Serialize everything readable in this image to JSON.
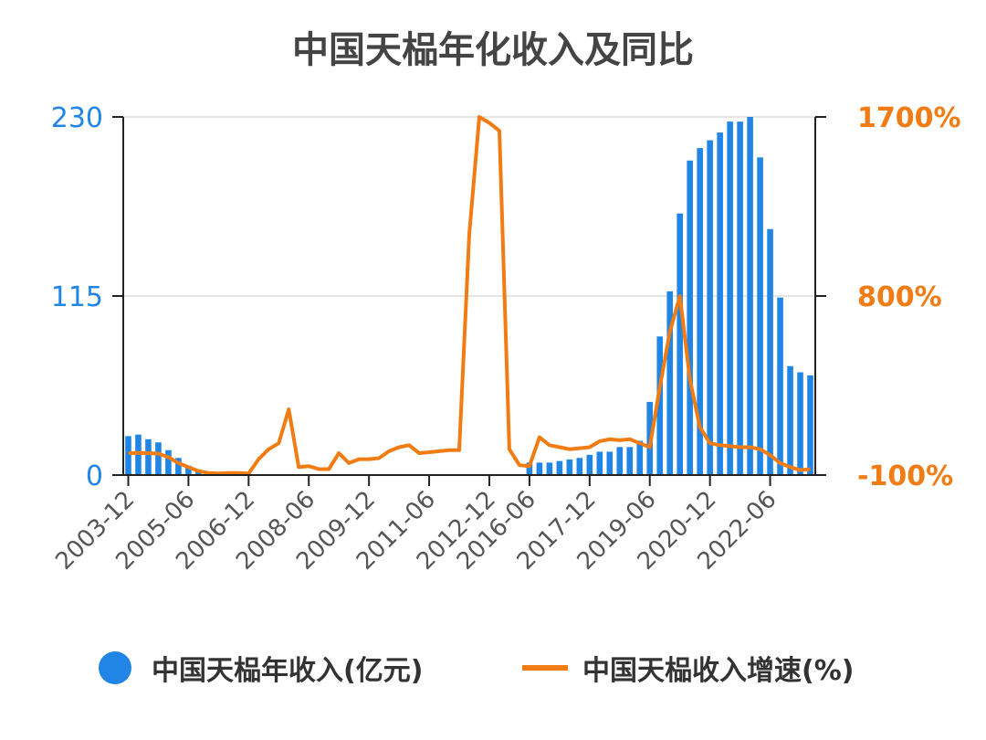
{
  "chart_data": {
    "type": "bar+line",
    "title": "中国天榀年化收入及同比",
    "categories": [
      "2003-12",
      "2004-03",
      "2004-06",
      "2004-09",
      "2004-12",
      "2005-03",
      "2005-06",
      "2005-09",
      "2005-12",
      "2006-03",
      "2006-06",
      "2006-09",
      "2006-12",
      "2007-03",
      "2007-06",
      "2007-09",
      "2007-12",
      "2008-03",
      "2008-06",
      "2008-09",
      "2008-12",
      "2009-03",
      "2009-06",
      "2009-09",
      "2009-12",
      "2010-03",
      "2010-06",
      "2010-09",
      "2010-12",
      "2011-03",
      "2011-06",
      "2011-09",
      "2011-12",
      "2012-03",
      "2012-06",
      "2012-09",
      "2012-12",
      "2013-03",
      "2013-06",
      "2013-09",
      "2016-06",
      "2016-09",
      "2016-12",
      "2017-03",
      "2017-06",
      "2017-09",
      "2017-12",
      "2018-03",
      "2018-06",
      "2018-09",
      "2018-12",
      "2019-03",
      "2019-06",
      "2019-09",
      "2019-12",
      "2020-03",
      "2020-06",
      "2020-09",
      "2020-12",
      "2021-03",
      "2021-06",
      "2021-09",
      "2021-12",
      "2022-03",
      "2022-06",
      "2022-09",
      "2022-12",
      "2023-03",
      "2023-06"
    ],
    "x_tick_labels": [
      "2003-12",
      "2005-06",
      "2006-12",
      "2008-06",
      "2009-12",
      "2011-06",
      "2012-12",
      "2016-06",
      "2017-12",
      "2019-06",
      "2020-12",
      "2022-06"
    ],
    "series": [
      {
        "name": "中国天榀年收入(亿元)",
        "type": "bar",
        "axis": "left",
        "color": "#2185e5",
        "values": [
          25,
          26,
          23,
          21,
          16,
          11,
          6,
          3,
          1,
          0.5,
          0.4,
          0.3,
          0.2,
          0.2,
          0.2,
          0.2,
          0.2,
          0.2,
          0.2,
          0.2,
          0.2,
          0.2,
          0.2,
          0.2,
          0.2,
          0.2,
          0.2,
          0.2,
          0.2,
          0.2,
          0.2,
          0.2,
          0.2,
          0.2,
          0.2,
          0.2,
          0.2,
          0.2,
          0.2,
          0.2,
          8,
          8,
          8,
          9,
          10,
          11,
          13,
          15,
          15,
          18,
          18,
          22,
          47,
          89,
          118,
          168,
          202,
          210,
          215,
          220,
          227,
          227,
          230,
          204,
          158,
          114,
          70,
          66,
          64
        ]
      },
      {
        "name": "中国天榀收入增速(%)",
        "type": "line",
        "axis": "right",
        "color": "#f07c13",
        "values": [
          10,
          12,
          10,
          8,
          -10,
          -40,
          -60,
          -80,
          -90,
          -92,
          -90,
          -90,
          -92,
          -20,
          30,
          60,
          230,
          -60,
          -55,
          -70,
          -70,
          10,
          -40,
          -20,
          -20,
          -15,
          20,
          40,
          50,
          10,
          15,
          20,
          25,
          25,
          1110,
          1700,
          1670,
          1630,
          30,
          -50,
          -55,
          90,
          50,
          40,
          30,
          35,
          40,
          70,
          80,
          75,
          80,
          60,
          40,
          340,
          620,
          800,
          380,
          140,
          60,
          50,
          45,
          40,
          40,
          30,
          0,
          -40,
          -60,
          -75,
          -70
        ]
      }
    ],
    "y_left": {
      "ticks": [
        "0",
        "115",
        "230"
      ],
      "ylim": [
        0,
        230
      ],
      "color": "#2185e5"
    },
    "y_right": {
      "ticks": [
        "-100%",
        "800%",
        "1700%"
      ],
      "ylim": [
        -100,
        1700
      ],
      "color": "#f07c13"
    },
    "grid": true,
    "legend_position": "bottom",
    "colors": {
      "bar": "#2185e5",
      "line": "#f07c13",
      "title": "#444444",
      "axis": "#222222",
      "grid": "#e6e6e6",
      "tick_label": "#555555"
    }
  }
}
